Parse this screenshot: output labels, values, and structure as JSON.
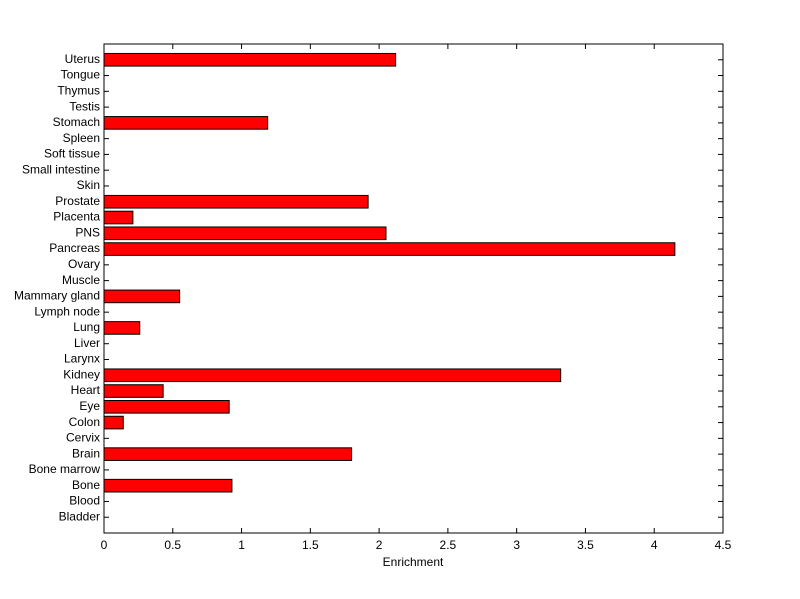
{
  "chart_data": {
    "type": "barh",
    "xlabel": "Enrichment",
    "categories": [
      "Bladder",
      "Blood",
      "Bone",
      "Bone marrow",
      "Brain",
      "Cervix",
      "Colon",
      "Eye",
      "Heart",
      "Kidney",
      "Larynx",
      "Liver",
      "Lung",
      "Lymph node",
      "Mammary gland",
      "Muscle",
      "Ovary",
      "Pancreas",
      "PNS",
      "Placenta",
      "Prostate",
      "Skin",
      "Small intestine",
      "Soft tissue",
      "Spleen",
      "Stomach",
      "Testis",
      "Thymus",
      "Tongue",
      "Uterus"
    ],
    "values": [
      0,
      0,
      0.93,
      0,
      1.8,
      0,
      0.14,
      0.91,
      0.43,
      3.32,
      0,
      0,
      0.26,
      0,
      0.55,
      0,
      0,
      4.15,
      2.05,
      0.21,
      1.92,
      0,
      0,
      0,
      0,
      1.19,
      0,
      0,
      0,
      2.12
    ],
    "color": "#ff0000",
    "xlim": [
      0,
      4.5
    ],
    "xticks": [
      0,
      0.5,
      1,
      1.5,
      2,
      2.5,
      3,
      3.5,
      4,
      4.5
    ]
  }
}
